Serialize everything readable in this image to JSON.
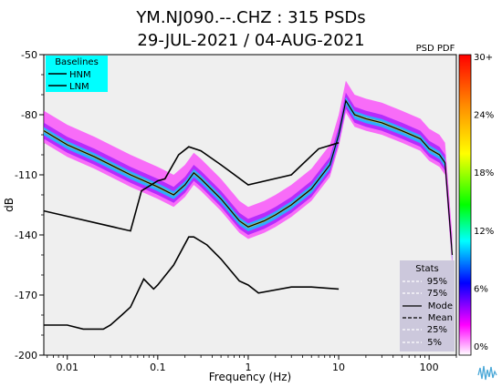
{
  "chart_data": {
    "type": "heatmap",
    "title_line1": "YM.NJ090.--.CHZ : 315 PSDs",
    "title_line2": "29-JUL-2021 / 04-AUG-2021",
    "xlabel": "Frequency (Hz)",
    "ylabel": "dB",
    "x_scale": "log",
    "xlim": [
      0.0055,
      200
    ],
    "ylim": [
      -200,
      -50
    ],
    "x_ticks": [
      0.01,
      0.1,
      1,
      10,
      100
    ],
    "x_tick_labels": [
      "0.01",
      "0.1",
      "1",
      "10",
      "100"
    ],
    "y_ticks": [
      -50,
      -80,
      -110,
      -140,
      -170,
      -200
    ],
    "y_tick_labels": [
      "-50",
      "-80",
      "-110",
      "-140",
      "-170",
      "-200"
    ],
    "colorbar": {
      "title": "PSD PDF",
      "labels": [
        "30+",
        "24%",
        "18%",
        "12%",
        "6%",
        "0%"
      ],
      "colors": [
        "#ff0000",
        "#ff7f00",
        "#ffff00",
        "#00ff00",
        "#00ffff",
        "#0000ff",
        "#ff00ff",
        "#ffffff"
      ]
    },
    "baselines_legend": {
      "title": "Baselines",
      "entries": [
        "HNM",
        "LNM"
      ],
      "bg": "#00ffff"
    },
    "stats_legend": {
      "title": "Stats",
      "entries": [
        "95%",
        "75%",
        "Mode",
        "Mean",
        "25%",
        "5%"
      ],
      "bg": "#ccc8dc"
    },
    "series": [
      {
        "name": "HNM",
        "x": [
          0.0055,
          0.05,
          0.066,
          0.1,
          0.12,
          0.17,
          0.22,
          0.3,
          0.5,
          1.0,
          3.0,
          6.0,
          10.0
        ],
        "y": [
          -128,
          -138,
          -118,
          -113,
          -112,
          -100,
          -96,
          -98,
          -105,
          -115,
          -110,
          -97,
          -94
        ]
      },
      {
        "name": "LNM",
        "x": [
          0.0055,
          0.01,
          0.015,
          0.025,
          0.03,
          0.04,
          0.05,
          0.07,
          0.09,
          0.1,
          0.15,
          0.22,
          0.25,
          0.35,
          0.5,
          0.8,
          1.0,
          1.3,
          3.0,
          5.0,
          10.0
        ],
        "y": [
          -185,
          -185,
          -187,
          -187,
          -185,
          -180,
          -176,
          -162,
          -167,
          -165,
          -155,
          -141,
          -141,
          -145,
          -152,
          -163,
          -165,
          -169,
          -166,
          -166,
          -167
        ]
      },
      {
        "name": "Mode",
        "x": [
          0.0055,
          0.01,
          0.02,
          0.05,
          0.1,
          0.15,
          0.2,
          0.25,
          0.3,
          0.5,
          0.8,
          1.0,
          1.5,
          2.0,
          3.0,
          5.0,
          8.0,
          10.0,
          12.0,
          15.0,
          20.0,
          30.0,
          50.0,
          80.0,
          100.0,
          130.0,
          150.0,
          180.0
        ],
        "y": [
          -88,
          -95,
          -101,
          -110,
          -116,
          -120,
          -115,
          -109,
          -112,
          -122,
          -133,
          -136,
          -133,
          -130,
          -125,
          -117,
          -105,
          -90,
          -73,
          -80,
          -82,
          -84,
          -88,
          -92,
          -97,
          -100,
          -104,
          -150
        ]
      }
    ]
  }
}
